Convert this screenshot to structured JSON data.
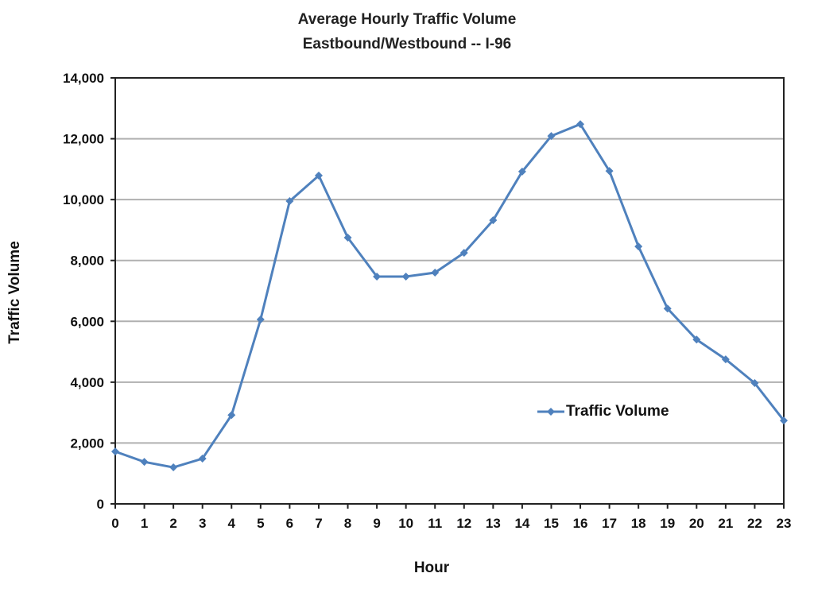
{
  "chart_data": {
    "type": "line",
    "title": "Average Hourly Traffic Volume",
    "subtitle": "Eastbound/Westbound -- I-96",
    "xlabel": "Hour",
    "ylabel": "Traffic Volume",
    "ylim": [
      0,
      14000
    ],
    "yticks": [
      "0",
      "2,000",
      "4,000",
      "6,000",
      "8,000",
      "10,000",
      "12,000",
      "14,000"
    ],
    "categories": [
      "0",
      "1",
      "2",
      "3",
      "4",
      "5",
      "6",
      "7",
      "8",
      "9",
      "10",
      "11",
      "12",
      "13",
      "14",
      "15",
      "16",
      "17",
      "18",
      "19",
      "20",
      "21",
      "22",
      "23"
    ],
    "series": [
      {
        "name": "Traffic Volume",
        "color": "#4F81BD",
        "marker": "diamond",
        "values": [
          1720,
          1380,
          1200,
          1490,
          2920,
          6060,
          9950,
          10790,
          8750,
          7470,
          7470,
          7600,
          8250,
          9320,
          10920,
          12090,
          12480,
          10940,
          8460,
          6420,
          5400,
          4750,
          3970,
          2740
        ]
      }
    ],
    "grid": "horizontal",
    "legend_position": "inside-right"
  }
}
